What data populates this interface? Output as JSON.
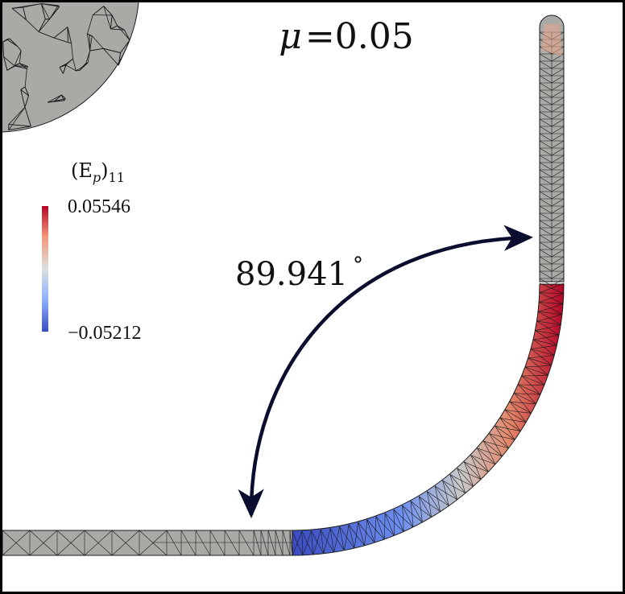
{
  "title": {
    "symbol": "μ",
    "equals": "=",
    "value": "0.05"
  },
  "angle_annotation": {
    "value": "89.941",
    "unit_symbol": "°"
  },
  "colorbar": {
    "label_base": "(E",
    "label_sub_p": "p",
    "label_close": ")",
    "label_sub_index": "11",
    "max_label": "0.05546",
    "min_label": "−0.05212",
    "max_value": 0.05546,
    "min_value": -0.05212,
    "colormap": [
      "#3b4cc0",
      "#8db0fe",
      "#dddddd",
      "#f49a7b",
      "#b40426"
    ]
  },
  "colors": {
    "mesh_fill": "#a9a9a6",
    "mesh_lines": "#1a1a1a",
    "arrow": "#0b0d2e",
    "frame": "#000000"
  }
}
